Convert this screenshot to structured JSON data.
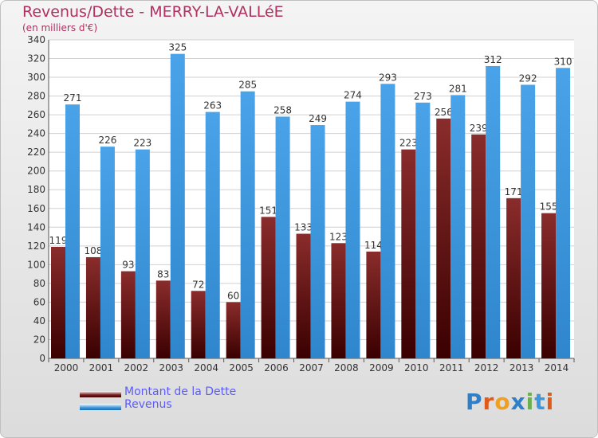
{
  "title": "Revenus/Dette - MERRY-LA-VALLéE",
  "subtitle": "(en milliers d'€)",
  "logo": "Proxiti",
  "colors": {
    "title": "#b03060",
    "dette": "#7a1f1f",
    "revenus": "#3d97dd",
    "legend_text": "#5a5aff"
  },
  "legend": {
    "dette_label": "Montant de la Dette",
    "revenus_label": "Revenus"
  },
  "chart_data": {
    "type": "bar",
    "categories": [
      "2000",
      "2001",
      "2002",
      "2003",
      "2004",
      "2005",
      "2006",
      "2007",
      "2008",
      "2009",
      "2010",
      "2011",
      "2012",
      "2013",
      "2014"
    ],
    "series": [
      {
        "name": "Montant de la Dette",
        "values": [
          119,
          108,
          93,
          83,
          72,
          60,
          151,
          133,
          123,
          114,
          223,
          256,
          239,
          171,
          155
        ]
      },
      {
        "name": "Revenus",
        "values": [
          271,
          226,
          223,
          325,
          263,
          285,
          258,
          249,
          274,
          293,
          273,
          281,
          312,
          292,
          310
        ]
      }
    ],
    "ylim": [
      0,
      340
    ],
    "ytick_step": 20,
    "grid": true
  }
}
